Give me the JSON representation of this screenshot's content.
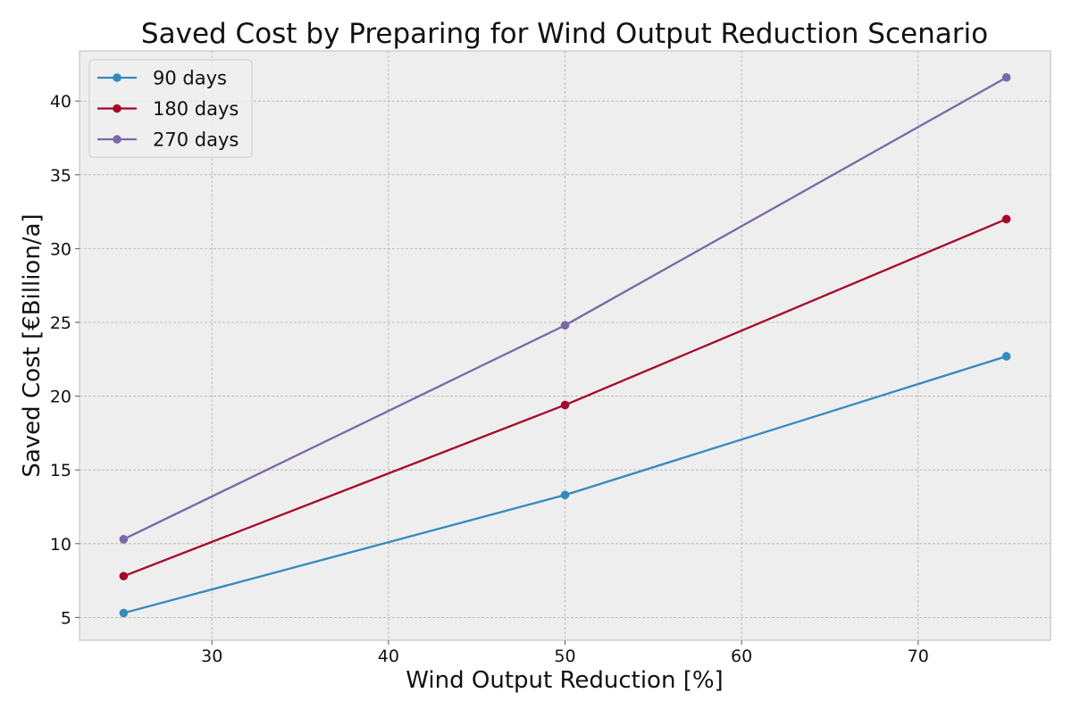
{
  "chart_data": {
    "type": "line",
    "title": "Saved Cost by Preparing for Wind Output Reduction Scenario",
    "xlabel": "Wind Output Reduction [%]",
    "ylabel": "Saved Cost [€Billion/a]",
    "x": [
      25,
      50,
      75
    ],
    "xlim": [
      22.5,
      77.5
    ],
    "ylim": [
      3.45,
      43.4
    ],
    "xticks": [
      30,
      40,
      50,
      60,
      70
    ],
    "yticks": [
      5,
      10,
      15,
      20,
      25,
      30,
      35,
      40
    ],
    "grid": true,
    "legend_position": "top-left",
    "series": [
      {
        "name": "90 days",
        "color": "#348ABD",
        "values": [
          5.3,
          13.3,
          22.7
        ]
      },
      {
        "name": "180 days",
        "color": "#A60628",
        "values": [
          7.8,
          19.4,
          32.0
        ]
      },
      {
        "name": "270 days",
        "color": "#7A68A6",
        "values": [
          10.3,
          24.8,
          41.6
        ]
      }
    ]
  }
}
